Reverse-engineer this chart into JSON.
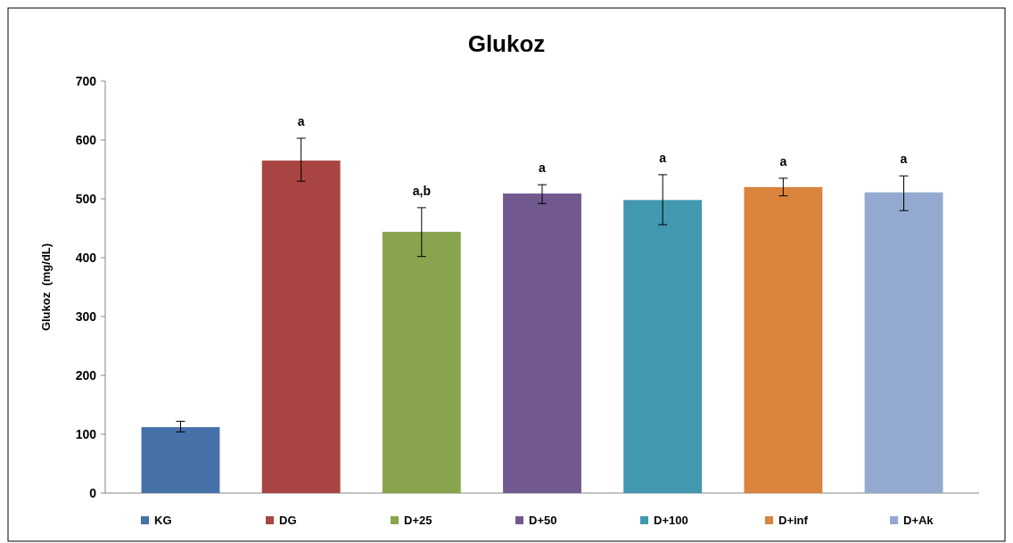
{
  "chart_data": {
    "type": "bar",
    "title": "Glukoz",
    "ylabel": "Glukoz  (mg/dL)",
    "categories": [
      null,
      null,
      null,
      null,
      null,
      null,
      null
    ],
    "series": [
      {
        "name": "KG",
        "color": "#4571a8",
        "values": [
          112,
          null,
          null,
          null,
          null,
          null,
          null
        ],
        "errors": [
          [
            104,
            122
          ],
          null,
          null,
          null,
          null,
          null,
          null
        ],
        "value_labels": [
          null,
          null,
          null,
          null,
          null,
          null,
          null
        ]
      },
      {
        "name": "DG",
        "color": "#a84542",
        "values": [
          null,
          565,
          null,
          null,
          null,
          null,
          null
        ],
        "errors": [
          null,
          [
            530,
            603
          ],
          null,
          null,
          null,
          null,
          null
        ],
        "value_labels": [
          null,
          "a",
          null,
          null,
          null,
          null,
          null
        ]
      },
      {
        "name": "D+25",
        "color": "#88a54e",
        "values": [
          null,
          null,
          444,
          null,
          null,
          null,
          null
        ],
        "errors": [
          null,
          null,
          [
            402,
            485
          ],
          null,
          null,
          null,
          null
        ],
        "value_labels": [
          null,
          null,
          "a,b",
          null,
          null,
          null,
          null
        ]
      },
      {
        "name": "D+50",
        "color": "#71588f",
        "values": [
          null,
          null,
          null,
          509,
          null,
          null,
          null
        ],
        "errors": [
          null,
          null,
          null,
          [
            492,
            524
          ],
          null,
          null,
          null
        ],
        "value_labels": [
          null,
          null,
          null,
          "a",
          null,
          null,
          null
        ]
      },
      {
        "name": "D+100",
        "color": "#4198af",
        "values": [
          null,
          null,
          null,
          null,
          498,
          null,
          null
        ],
        "errors": [
          null,
          null,
          null,
          null,
          [
            456,
            541
          ],
          null,
          null
        ],
        "value_labels": [
          null,
          null,
          null,
          null,
          "a",
          null,
          null
        ]
      },
      {
        "name": "D+inf",
        "color": "#db843d",
        "values": [
          null,
          null,
          null,
          null,
          null,
          520,
          null
        ],
        "errors": [
          null,
          null,
          null,
          null,
          null,
          [
            505,
            535
          ],
          null
        ],
        "value_labels": [
          null,
          null,
          null,
          null,
          null,
          "a",
          null
        ]
      },
      {
        "name": "D+Ak",
        "color": "#93a9cf",
        "values": [
          null,
          null,
          null,
          null,
          null,
          null,
          511
        ],
        "errors": [
          null,
          null,
          null,
          null,
          null,
          null,
          [
            480,
            539
          ]
        ],
        "value_labels": [
          null,
          null,
          null,
          null,
          null,
          null,
          "a"
        ]
      }
    ],
    "ylim": [
      0,
      700
    ],
    "yticks": [
      0,
      100,
      200,
      300,
      400,
      500,
      600,
      700
    ],
    "tick_labels": "y",
    "legend": "bottom"
  }
}
